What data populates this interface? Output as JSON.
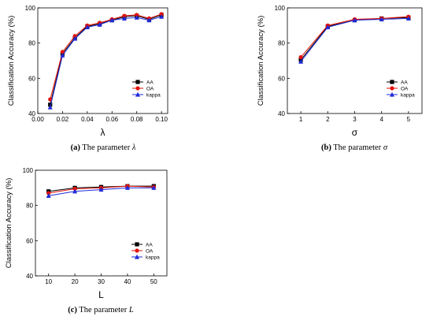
{
  "chart_data": [
    {
      "type": "line",
      "panel": "a",
      "caption": {
        "label": "(a)",
        "text": "The parameter",
        "symbol": "λ"
      },
      "xlabel": "λ",
      "ylabel": "Classification Accuracy (%)",
      "xlim": [
        0.0,
        0.105
      ],
      "ylim": [
        40,
        100
      ],
      "xticks": [
        "0.00",
        "0.02",
        "0.04",
        "0.06",
        "0.08",
        "0.10"
      ],
      "yticks": [
        "40",
        "60",
        "80",
        "100"
      ],
      "legend_position": "bottom-right",
      "x": [
        0.01,
        0.02,
        0.03,
        0.04,
        0.05,
        0.06,
        0.07,
        0.08,
        0.09,
        0.1
      ],
      "series": [
        {
          "name": "AA",
          "color": "#000000",
          "marker": "square",
          "values": [
            45,
            74,
            83,
            89.5,
            91,
            93,
            95,
            95.5,
            93.5,
            96
          ]
        },
        {
          "name": "OA",
          "color": "#e3120b",
          "marker": "circle",
          "values": [
            48,
            75,
            84,
            90,
            91.5,
            93.5,
            95.5,
            96,
            94,
            96.5
          ]
        },
        {
          "name": "kappa",
          "color": "#1f2ad8",
          "marker": "triangle",
          "values": [
            43.5,
            73,
            82.5,
            89,
            90.5,
            93,
            94,
            94.5,
            93,
            95
          ]
        }
      ]
    },
    {
      "type": "line",
      "panel": "b",
      "caption": {
        "label": "(b)",
        "text": "The parameter",
        "symbol": "σ"
      },
      "xlabel": "σ",
      "ylabel": "Classification Accuracy (%)",
      "xlim": [
        0.5,
        5.5
      ],
      "ylim": [
        40,
        100
      ],
      "xticks": [
        "1",
        "2",
        "3",
        "4",
        "5"
      ],
      "yticks": [
        "40",
        "60",
        "80",
        "100"
      ],
      "legend_position": "bottom-right",
      "x": [
        1,
        2,
        3,
        4,
        5
      ],
      "series": [
        {
          "name": "AA",
          "color": "#000000",
          "marker": "square",
          "values": [
            70.5,
            89.5,
            93,
            94,
            94.5
          ]
        },
        {
          "name": "OA",
          "color": "#e3120b",
          "marker": "circle",
          "values": [
            72,
            90,
            93.5,
            94,
            95
          ]
        },
        {
          "name": "kappa",
          "color": "#1f2ad8",
          "marker": "triangle",
          "values": [
            69.5,
            89,
            93,
            93.5,
            94
          ]
        }
      ]
    },
    {
      "type": "line",
      "panel": "c",
      "caption": {
        "label": "(c)",
        "text": "The parameter",
        "symbol": "L"
      },
      "xlabel": "L",
      "ylabel": "Classification Accuracy (%)",
      "xlim": [
        5,
        55
      ],
      "ylim": [
        40,
        100
      ],
      "xticks": [
        "10",
        "20",
        "30",
        "40",
        "50"
      ],
      "yticks": [
        "40",
        "60",
        "80",
        "100"
      ],
      "legend_position": "bottom-right",
      "x": [
        10,
        20,
        30,
        40,
        50
      ],
      "series": [
        {
          "name": "AA",
          "color": "#000000",
          "marker": "square",
          "values": [
            88,
            90,
            90.5,
            91,
            91
          ]
        },
        {
          "name": "OA",
          "color": "#e3120b",
          "marker": "circle",
          "values": [
            87,
            89.5,
            90,
            91,
            90.5
          ]
        },
        {
          "name": "kappa",
          "color": "#1f2ad8",
          "marker": "triangle",
          "values": [
            85.5,
            88,
            89,
            90,
            90
          ]
        }
      ]
    }
  ]
}
